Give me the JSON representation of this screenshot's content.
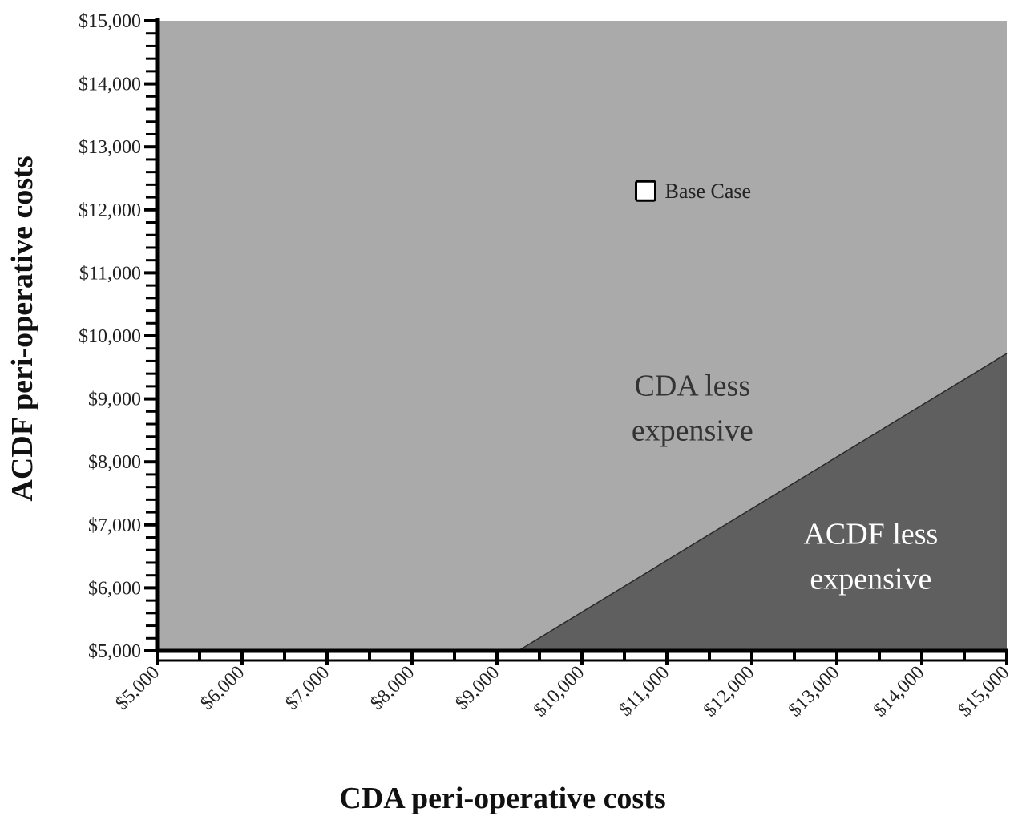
{
  "chart_data": {
    "type": "area",
    "title": "",
    "xlabel": "CDA peri-operative costs",
    "ylabel": "ACDF peri-operative costs",
    "xlim": [
      5000,
      15000
    ],
    "ylim": [
      5000,
      15000
    ],
    "x_ticks": [
      5000,
      6000,
      7000,
      8000,
      9000,
      10000,
      11000,
      12000,
      13000,
      14000,
      15000
    ],
    "y_ticks": [
      5000,
      6000,
      7000,
      8000,
      9000,
      10000,
      11000,
      12000,
      13000,
      14000,
      15000
    ],
    "x_tick_labels": [
      "$5,000",
      "$6,000",
      "$7,000",
      "$8,000",
      "$9,000",
      "$10,000",
      "$11,000",
      "$12,000",
      "$13,000",
      "$14,000",
      "$15,000"
    ],
    "y_tick_labels": [
      "$5,000",
      "$6,000",
      "$7,000",
      "$8,000",
      "$9,000",
      "$10,000",
      "$11,000",
      "$12,000",
      "$13,000",
      "$14,000",
      "$15,000"
    ],
    "threshold_line": {
      "x": [
        9250,
        15000
      ],
      "y": [
        5000,
        9720
      ]
    },
    "regions": [
      {
        "label_lines": [
          "CDA less",
          "expensive"
        ],
        "color": "#aaaaaa",
        "label_at": [
          11300,
          9050
        ]
      },
      {
        "label_lines": [
          "ACDF less",
          "expensive"
        ],
        "color": "#5f5f5f",
        "label_at": [
          13400,
          6700
        ]
      }
    ],
    "points": [
      {
        "name": "Base Case",
        "x": 10750,
        "y": 12300
      }
    ],
    "grid": false,
    "legend": "none"
  }
}
